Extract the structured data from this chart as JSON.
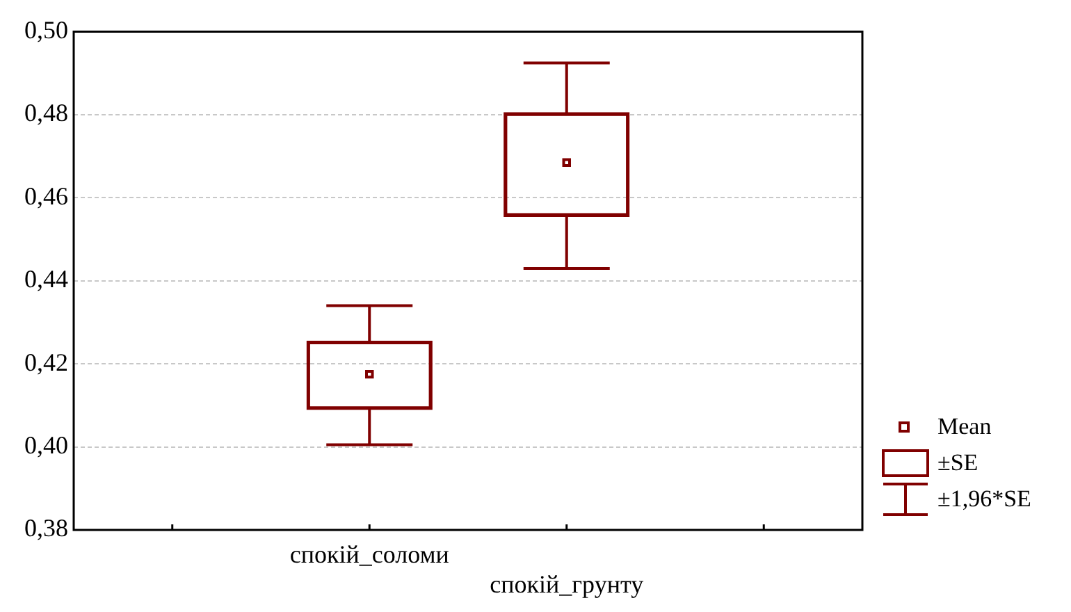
{
  "chart_data": {
    "type": "box",
    "categories": [
      null,
      "спокій_соломи",
      "спокій_грунту",
      null
    ],
    "ylim": [
      0.38,
      0.5
    ],
    "yticks": [
      {
        "value": 0.38,
        "label": "0,38"
      },
      {
        "value": 0.4,
        "label": "0,40"
      },
      {
        "value": 0.42,
        "label": "0,42"
      },
      {
        "value": 0.44,
        "label": "0,44"
      },
      {
        "value": 0.46,
        "label": "0,46"
      },
      {
        "value": 0.48,
        "label": "0,48"
      },
      {
        "value": 0.5,
        "label": "0,50"
      }
    ],
    "grid": "y",
    "marker": "square",
    "color": "#800000",
    "boxes": [
      null,
      {
        "low": 0.4005,
        "q1": 0.409,
        "median": 0.4175,
        "q3": 0.4255,
        "high": 0.434
      },
      {
        "low": 0.443,
        "q1": 0.4555,
        "median": 0.4685,
        "q3": 0.4805,
        "high": 0.4925
      },
      null
    ],
    "annotations": [
      "Mean",
      "±SE",
      "±1,96*SE"
    ]
  }
}
